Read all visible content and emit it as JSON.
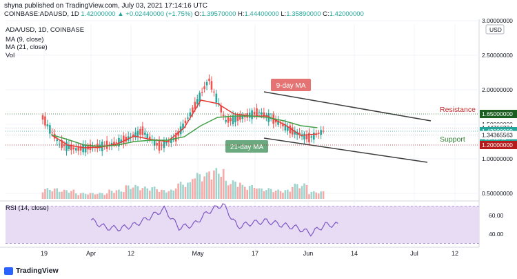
{
  "header": {
    "publisher_line": "shyna published on TradingView.com, July 03, 2021 17:14:16 UTC",
    "symbol": "COINBASE:ADAUSD, 1D",
    "last": "1.42000000",
    "change": "+0.02440000 (+1.75%)",
    "o_label": "O:",
    "o_value": "1.39570000",
    "h_label": "H:",
    "h_value": "1.44400000",
    "l_label": "L:",
    "l_value": "1.35890000",
    "c_label": "C:",
    "c_value": "1.42000000"
  },
  "legend": {
    "title": "ADA/USD, 1D, COINBASE",
    "ma9": "MA (9, close)",
    "ma21": "MA (21, close)",
    "vol": "Vol",
    "rsi": "RSI (14, close)"
  },
  "annotations": {
    "ma9_label": "9-day MA",
    "ma21_label": "21-day MA",
    "resistance": "Resistance",
    "support": "Support"
  },
  "price_tags": [
    {
      "text": "1.65000000",
      "price": 1.65,
      "bg": "#1b5e20",
      "fg": "#ffffff"
    },
    {
      "text": "1.44766334",
      "price": 1.4477,
      "bg": "#ffffff",
      "fg": "#131722"
    },
    {
      "text": "1.42000000",
      "price": 1.4,
      "bg": "#26a69a",
      "fg": "#ffffff",
      "sub": "06:45:46"
    },
    {
      "text": "1.34365563",
      "price": 1.3437,
      "bg": "#ffffff",
      "fg": "#131722"
    },
    {
      "text": "1.20000000",
      "price": 1.2,
      "bg": "#b71c1c",
      "fg": "#ffffff"
    }
  ],
  "axis": {
    "currency": "USD",
    "price_ticks": [
      "3.00000000",
      "2.50000000",
      "2.00000000",
      "1.50000000",
      "1.00000000",
      "0.50000000"
    ],
    "rsi_ticks": [
      "60.00",
      "40.00"
    ],
    "x_ticks": [
      "19",
      "Apr",
      "12",
      "May",
      "17",
      "Jun",
      "14",
      "Jul",
      "12"
    ]
  },
  "branding": {
    "name": "TradingView"
  },
  "colors": {
    "up": "#26a69a",
    "down": "#ef5350",
    "ma9": "#e53935",
    "ma21": "#43a047",
    "rsi": "#7e57c2",
    "rsi_band": "#e8dcf5",
    "trend": "#3c3c3c",
    "ma9_box": "#e57373",
    "ma21_box": "#6aaa7e"
  },
  "chart_data": {
    "type": "candlestick",
    "price_scale": {
      "min": 0.5,
      "max": 3.0,
      "step": 0.5
    },
    "ohlc_weekly_approx": [
      {
        "t": "Mar 09",
        "o": 1.6,
        "h": 1.65,
        "l": 1.05,
        "c": 1.22
      },
      {
        "t": "Mar 16",
        "o": 1.22,
        "h": 1.3,
        "l": 1.08,
        "c": 1.14
      },
      {
        "t": "Mar 23",
        "o": 1.14,
        "h": 1.2,
        "l": 1.08,
        "c": 1.17
      },
      {
        "t": "Mar 30",
        "o": 1.17,
        "h": 1.23,
        "l": 1.14,
        "c": 1.2
      },
      {
        "t": "Apr 06",
        "o": 1.2,
        "h": 1.35,
        "l": 1.18,
        "c": 1.28
      },
      {
        "t": "Apr 13",
        "o": 1.28,
        "h": 1.5,
        "l": 1.2,
        "c": 1.4
      },
      {
        "t": "Apr 20",
        "o": 1.4,
        "h": 1.42,
        "l": 1.03,
        "c": 1.18
      },
      {
        "t": "Apr 27",
        "o": 1.18,
        "h": 1.35,
        "l": 1.1,
        "c": 1.3
      },
      {
        "t": "May 04",
        "o": 1.3,
        "h": 1.75,
        "l": 1.28,
        "c": 1.7
      },
      {
        "t": "May 11",
        "o": 1.7,
        "h": 2.45,
        "l": 1.6,
        "c": 2.15
      },
      {
        "t": "May 18",
        "o": 2.15,
        "h": 2.3,
        "l": 1.05,
        "c": 1.55
      },
      {
        "t": "May 25",
        "o": 1.55,
        "h": 1.8,
        "l": 1.3,
        "c": 1.6
      },
      {
        "t": "Jun 01",
        "o": 1.6,
        "h": 1.85,
        "l": 1.55,
        "c": 1.68
      },
      {
        "t": "Jun 08",
        "o": 1.68,
        "h": 1.72,
        "l": 1.45,
        "c": 1.55
      },
      {
        "t": "Jun 15",
        "o": 1.55,
        "h": 1.6,
        "l": 1.35,
        "c": 1.4
      },
      {
        "t": "Jun 22",
        "o": 1.4,
        "h": 1.45,
        "l": 1.0,
        "c": 1.3
      },
      {
        "t": "Jun 29",
        "o": 1.3,
        "h": 1.45,
        "l": 1.25,
        "c": 1.42
      }
    ],
    "ma9_weekly_approx": [
      1.35,
      1.2,
      1.16,
      1.17,
      1.22,
      1.33,
      1.28,
      1.25,
      1.45,
      1.85,
      1.8,
      1.65,
      1.62,
      1.62,
      1.5,
      1.34,
      1.36
    ],
    "ma21_weekly_approx": [
      1.35,
      1.28,
      1.2,
      1.18,
      1.2,
      1.25,
      1.27,
      1.27,
      1.32,
      1.48,
      1.6,
      1.62,
      1.62,
      1.6,
      1.55,
      1.48,
      1.45
    ],
    "volume_weekly_relative": [
      0.35,
      0.3,
      0.2,
      0.2,
      0.3,
      0.45,
      0.4,
      0.3,
      0.55,
      0.85,
      1.0,
      0.6,
      0.45,
      0.35,
      0.3,
      0.5,
      0.25
    ],
    "rsi_weekly_approx": [
      55,
      47,
      46,
      50,
      58,
      67,
      47,
      50,
      64,
      72,
      48,
      52,
      54,
      50,
      47,
      41,
      50
    ],
    "rsi_band": [
      30,
      70
    ],
    "trendlines": [
      {
        "name": "Resistance",
        "from": {
          "t": "May 19",
          "p": 1.97
        },
        "to": {
          "t": "Jul 12",
          "p": 1.55
        }
      },
      {
        "name": "Support",
        "from": {
          "t": "May 19",
          "p": 1.3
        },
        "to": {
          "t": "Jul 12",
          "p": 0.95
        }
      }
    ]
  }
}
